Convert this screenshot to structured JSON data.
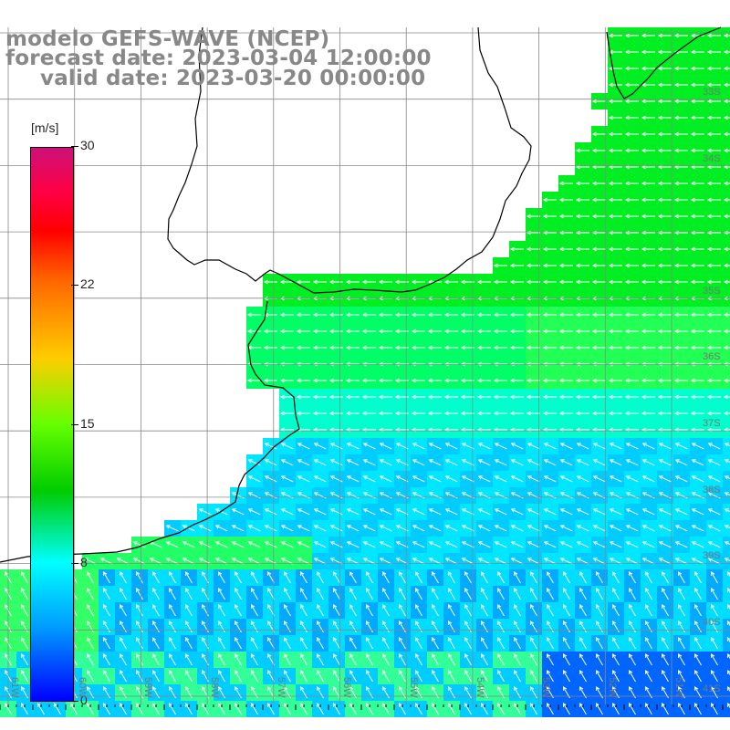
{
  "header": {
    "line1": "modelo GEFS-WAVE (NCEP)",
    "line2": "forecast date: 2023-03-04 12:00:00",
    "line3": "valid date: 2023-03-20 00:00:00"
  },
  "colorbar": {
    "unit": "[m/s]",
    "ticks": [
      "30",
      "22",
      "15",
      "8",
      "0"
    ],
    "values": [
      30,
      22,
      15,
      8,
      0
    ]
  },
  "map": {
    "lon_labels": [
      "61W",
      "60W",
      "59W",
      "58W",
      "57W",
      "56W",
      "55W",
      "54W",
      "53W",
      "52W",
      "51W"
    ],
    "lat_labels": [
      "33S",
      "34S",
      "35S",
      "36S",
      "37S",
      "38S",
      "39S",
      "40S",
      "41S"
    ],
    "colors": {
      "land": "#ffffff",
      "coast": "#000000",
      "grid": "#888888",
      "arrows": "#ffffff"
    }
  }
}
